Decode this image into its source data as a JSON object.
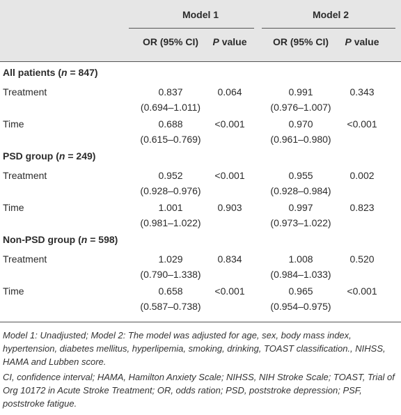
{
  "table": {
    "models": [
      "Model 1",
      "Model 2"
    ],
    "subheaders": [
      [
        "OR (95% CI)"
      ],
      [
        "P",
        " value"
      ],
      [
        "OR (95% CI)"
      ],
      [
        "P",
        " value"
      ]
    ],
    "groups": [
      {
        "label": [
          "All patients (",
          "n",
          " = 847)"
        ],
        "rows": [
          {
            "name": "Treatment",
            "or1": "0.837",
            "ci1": "(0.694–1.011)",
            "p1": "0.064",
            "or2": "0.991",
            "ci2": "(0.976–1.007)",
            "p2": "0.343"
          },
          {
            "name": "Time",
            "or1": "0.688",
            "ci1": "(0.615–0.769)",
            "p1": "<0.001",
            "or2": "0.970",
            "ci2": "(0.961–0.980)",
            "p2": "<0.001"
          }
        ]
      },
      {
        "label": [
          "PSD group (",
          "n",
          " = 249)"
        ],
        "rows": [
          {
            "name": "Treatment",
            "or1": "0.952",
            "ci1": "(0.928–0.976)",
            "p1": "<0.001",
            "or2": "0.955",
            "ci2": "(0.928–0.984)",
            "p2": "0.002"
          },
          {
            "name": "Time",
            "or1": "1.001",
            "ci1": "(0.981–1.022)",
            "p1": "0.903",
            "or2": "0.997",
            "ci2": "(0.973–1.022)",
            "p2": "0.823"
          }
        ]
      },
      {
        "label": [
          "Non-PSD group (",
          "n",
          " = 598)"
        ],
        "rows": [
          {
            "name": "Treatment",
            "or1": "1.029",
            "ci1": "(0.790–1.338)",
            "p1": "0.834",
            "or2": "1.008",
            "ci2": "(0.984–1.033)",
            "p2": "0.520"
          },
          {
            "name": "Time",
            "or1": "0.658",
            "ci1": "(0.587–0.738)",
            "p1": "<0.001",
            "or2": "0.965",
            "ci2": "(0.954–0.975)",
            "p2": "<0.001"
          }
        ]
      }
    ],
    "footnotes": [
      "Model 1: Unadjusted; Model 2: The model was adjusted for age, sex, body mass index, hypertension, diabetes mellitus, hyperlipemia, smoking, drinking, TOAST classification., NIHSS, HAMA and Lubben score.",
      "CI, confidence interval; HAMA, Hamilton Anxiety Scale; NIHSS, NIH Stroke Scale; TOAST, Trial of Org 10172 in Acute Stroke Treatment; OR, odds ration; PSD, poststroke depression; PSF, poststroke fatigue."
    ]
  }
}
